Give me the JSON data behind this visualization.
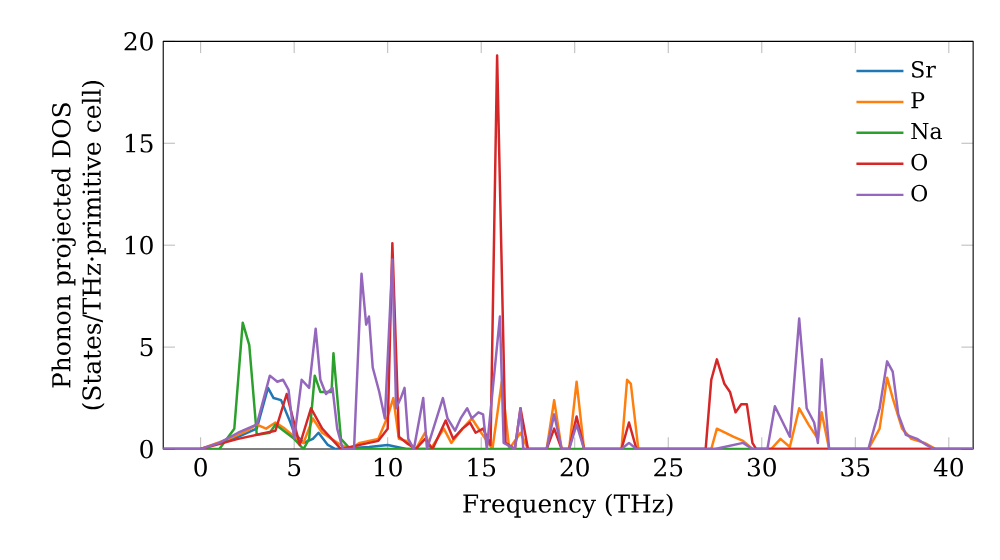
{
  "chart_data": {
    "type": "line",
    "xlabel": "Frequency (THz)",
    "ylabel": "Phonon projected DOS (States/THz·primitive cell)",
    "xlim": [
      -2,
      41.3
    ],
    "ylim": [
      0,
      20
    ],
    "xticks": [
      0,
      5,
      10,
      15,
      20,
      25,
      30,
      35,
      40
    ],
    "yticks": [
      0,
      5,
      10,
      15,
      20
    ],
    "legend": "top right",
    "grid": false,
    "series": [
      {
        "name": "Sr",
        "color": "#1f77b4",
        "x": [
          1,
          2,
          3,
          3.6,
          3.9,
          4.3,
          4.8,
          5.0,
          5.5,
          6.0,
          6.3,
          6.8,
          7.2,
          9,
          10,
          11,
          12
        ],
        "values": [
          0.3,
          0.6,
          1.0,
          3.0,
          2.5,
          2.4,
          1.3,
          0.8,
          0.3,
          0.5,
          0.8,
          0.2,
          0,
          0.1,
          0.2,
          0,
          0
        ]
      },
      {
        "name": "P",
        "color": "#ff7f0e",
        "x": [
          -2,
          0,
          1.5,
          2.5,
          3,
          3.5,
          4,
          4.5,
          5,
          5.5,
          6,
          6.5,
          7.5,
          8,
          8.5,
          9,
          9.5,
          10,
          10.3,
          10.6,
          11,
          11.5,
          12,
          12.3,
          13,
          13.4,
          14,
          14.5,
          15,
          15.6,
          16.1,
          16.5,
          17.1,
          17.5,
          18.5,
          18.9,
          19.3,
          19.7,
          20.1,
          20.5,
          22.5,
          22.8,
          23.0,
          23.4,
          27.3,
          27.6,
          28.5,
          29,
          29.5,
          30.5,
          31,
          31.5,
          32.0,
          32.5,
          33,
          33.2,
          33.6,
          35.7,
          36.3,
          36.7,
          37,
          37.5,
          38,
          38.7,
          39.3,
          41.3
        ],
        "values": [
          0,
          0,
          0.5,
          0.9,
          1.2,
          1.0,
          1.3,
          1.0,
          0.6,
          0.3,
          1.5,
          0.8,
          0.2,
          0,
          0.3,
          0.4,
          0.5,
          1.6,
          2.5,
          0.5,
          0.4,
          0,
          0.8,
          0,
          1.0,
          0.3,
          1.0,
          1.5,
          0.8,
          0,
          3.3,
          0,
          0.8,
          0,
          0,
          2.4,
          0,
          0,
          3.3,
          0,
          0,
          3.4,
          3.2,
          0,
          0,
          1.0,
          0.6,
          0.4,
          0,
          0,
          0.5,
          0.1,
          2.0,
          1.2,
          0.5,
          1.8,
          0,
          0,
          1.0,
          3.5,
          2.5,
          1.0,
          0.5,
          0.3,
          0,
          0
        ]
      },
      {
        "name": "Na",
        "color": "#2ca02c",
        "x": [
          -2,
          1,
          1.8,
          2.25,
          2.6,
          3.0,
          3.7,
          4.0,
          5.0,
          5.5,
          5.8,
          6.1,
          6.4,
          7.0,
          7.1,
          7.5,
          8,
          41.3
        ],
        "values": [
          0,
          0,
          1.0,
          6.2,
          5.1,
          0.7,
          0.8,
          1.2,
          0.5,
          0,
          0.5,
          3.6,
          2.8,
          2.8,
          4.7,
          0.5,
          0,
          0
        ]
      },
      {
        "name": "O",
        "color": "#d62728",
        "x": [
          -2,
          0,
          2,
          3,
          4,
          4.6,
          5.3,
          5.9,
          6.5,
          7,
          7.5,
          9,
          9.5,
          10,
          10.25,
          10.6,
          11,
          11.5,
          12,
          12.4,
          13.1,
          13.5,
          14.0,
          14.4,
          14.7,
          15.1,
          15.5,
          15.85,
          16.3,
          16.8,
          17.1,
          17.5,
          18.5,
          18.9,
          19.3,
          19.7,
          20.1,
          20.5,
          22.5,
          22.9,
          23.3,
          27.0,
          27.3,
          27.6,
          28.0,
          28.3,
          28.6,
          28.9,
          29.2,
          29.5,
          29.7,
          41.3
        ],
        "values": [
          0,
          0,
          0.5,
          0.7,
          0.9,
          2.7,
          0.2,
          2.0,
          1.0,
          0.5,
          0,
          0.3,
          0.4,
          1.0,
          10.1,
          0.6,
          0.3,
          0,
          0.5,
          0,
          1.4,
          0.5,
          1.0,
          1.3,
          0.8,
          1.0,
          0.2,
          19.3,
          0.3,
          0,
          2.0,
          0,
          0,
          1.0,
          0,
          0,
          1.6,
          0,
          0,
          1.3,
          0,
          0,
          3.4,
          4.4,
          3.2,
          2.8,
          1.8,
          2.2,
          2.2,
          0.3,
          0,
          0
        ]
      },
      {
        "name": "O",
        "color": "#9467bd",
        "x": [
          -2,
          0,
          1,
          2,
          3,
          3.7,
          4.1,
          4.4,
          4.7,
          5.0,
          5.4,
          5.8,
          6.15,
          6.4,
          6.7,
          7.05,
          7.3,
          7.6,
          8.2,
          8.6,
          8.85,
          9.0,
          9.2,
          9.55,
          9.85,
          10.25,
          10.45,
          10.7,
          10.9,
          11.1,
          11.4,
          11.9,
          12.1,
          12.95,
          13.2,
          13.6,
          13.9,
          14.25,
          14.5,
          14.85,
          15.1,
          15.3,
          16.0,
          16.2,
          16.8,
          17.1,
          17.25,
          18.5,
          18.9,
          19.3,
          19.7,
          20.1,
          20.5,
          22.5,
          22.9,
          23.3,
          27.5,
          29.0,
          29.5,
          30.3,
          30.7,
          31.5,
          32.0,
          32.4,
          32.8,
          33.0,
          33.2,
          33.6,
          35.7,
          36.0,
          36.3,
          36.7,
          37.0,
          37.3,
          37.7,
          38.3,
          38.8,
          39.2,
          41.3
        ],
        "values": [
          0,
          0,
          0.3,
          0.8,
          1.2,
          3.6,
          3.3,
          3.4,
          2.9,
          0.5,
          3.4,
          3.0,
          5.9,
          3.4,
          2.7,
          3.0,
          1.0,
          0,
          0,
          8.6,
          6.1,
          6.5,
          4.0,
          2.8,
          1.5,
          9.3,
          2.0,
          2.5,
          3.0,
          0.5,
          0,
          2.5,
          0,
          2.5,
          1.5,
          0.9,
          1.5,
          2.0,
          1.5,
          1.8,
          1.7,
          0,
          6.5,
          0.3,
          0,
          2.0,
          0,
          0,
          1.7,
          0,
          0,
          1.2,
          0,
          0,
          0.3,
          0,
          0,
          0.3,
          0,
          0,
          2.1,
          0.6,
          6.4,
          2.0,
          1.3,
          0.3,
          4.4,
          0,
          0,
          1.0,
          2.0,
          4.3,
          3.8,
          1.7,
          0.7,
          0.5,
          0.2,
          0,
          0
        ]
      }
    ]
  }
}
